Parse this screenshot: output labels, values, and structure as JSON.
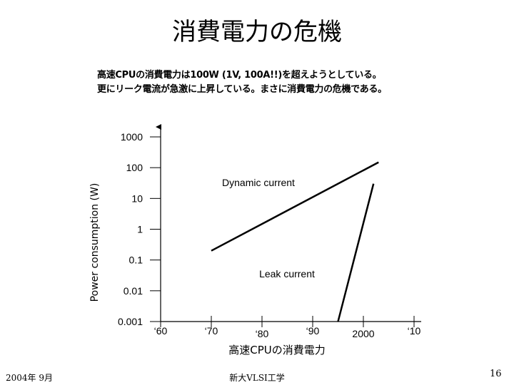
{
  "slide": {
    "title": "消費電力の危機",
    "subtitle_lines": [
      "高速CPUの消費電力は100W (1V, 100A!!)を超えようとしている。",
      "更にリーク電流が急激に上昇している。まさに消費電力の危機である。"
    ],
    "footer_left": "2004年 9月",
    "footer_center": "新大VLSI工学",
    "page_number": "16"
  },
  "chart_data": {
    "type": "line",
    "xlabel": "高速CPUの消費電力",
    "ylabel": "Power consumption (W)",
    "y_scale": "log",
    "y_ticks": [
      "1000",
      "100",
      "10",
      "1",
      "0.1",
      "0.01",
      "0.001"
    ],
    "y_tick_values": [
      1000,
      100,
      10,
      1,
      0.1,
      0.01,
      0.001
    ],
    "x_ticks": [
      "‘60",
      "‘70",
      "‘80",
      "‘90",
      "2000",
      "‘10"
    ],
    "x_tick_values": [
      1960,
      1970,
      1980,
      1990,
      2000,
      2010
    ],
    "xlim": [
      1960,
      2010
    ],
    "ylim": [
      0.001,
      1000
    ],
    "series": [
      {
        "name": "Dynamic current",
        "x": [
          1970,
          2003
        ],
        "y": [
          0.2,
          150
        ]
      },
      {
        "name": "Leak current",
        "x": [
          1995,
          2002
        ],
        "y": [
          0.001,
          30
        ]
      }
    ],
    "grid": false,
    "legend": "none"
  }
}
